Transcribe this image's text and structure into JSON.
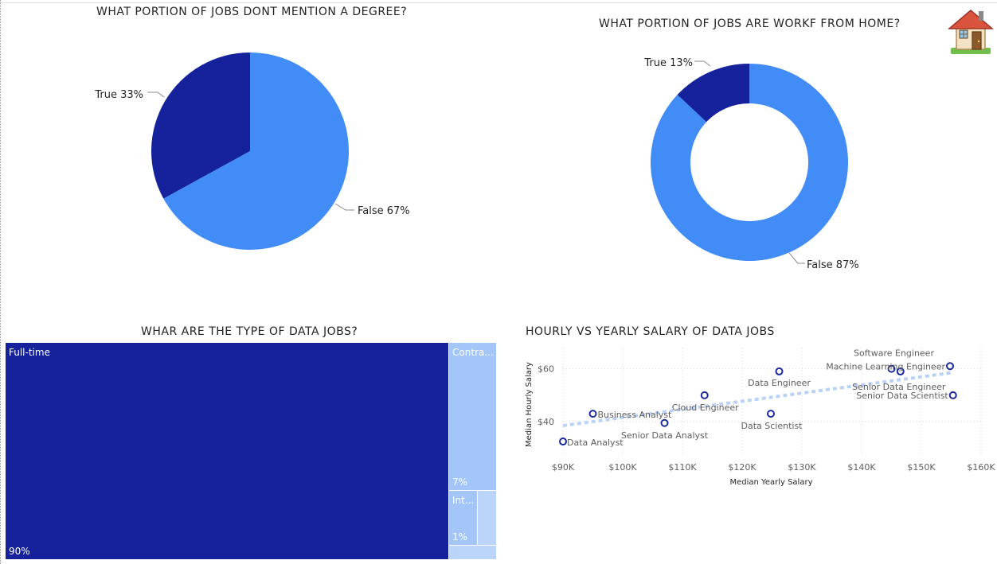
{
  "icons": {
    "house": "house-icon"
  },
  "colors": {
    "dark": "#16229b",
    "light": "#418cf6",
    "tm_light": "#a3c5f7",
    "tm_lighter": "#bbd4fa",
    "scatter": "#1b2a9e",
    "trend": "#b8d3f6"
  },
  "chart_data": [
    {
      "id": "degree",
      "type": "pie",
      "title": "WHAT PORTION OF JOBS DONT MENTION A DEGREE?",
      "slices": [
        {
          "label": "True",
          "value": 33,
          "text": "True 33%"
        },
        {
          "label": "False",
          "value": 67,
          "text": "False 67%"
        }
      ]
    },
    {
      "id": "wfh",
      "type": "pie",
      "donut": true,
      "title": "WHAT PORTION OF JOBS ARE WORKF FROM HOME?",
      "slices": [
        {
          "label": "True",
          "value": 13,
          "text": "True 13%"
        },
        {
          "label": "False",
          "value": 87,
          "text": "False 87%"
        }
      ]
    },
    {
      "id": "types",
      "type": "treemap",
      "title": "WHAR ARE THE TYPE OF DATA JOBS?",
      "items": [
        {
          "label": "Full-time",
          "value": 90,
          "value_text": "90%"
        },
        {
          "label": "Contra...",
          "value": 7,
          "value_text": "7%"
        },
        {
          "label": "Int...",
          "value": 1,
          "value_text": "1%"
        }
      ]
    },
    {
      "id": "salary",
      "type": "scatter",
      "title": "HOURLY VS YEARLY SALARY OF DATA JOBS",
      "xlabel": "Median Yearly Salary",
      "ylabel": "Median Hourly Salary",
      "xlim": [
        90000,
        160000
      ],
      "ylim": [
        28,
        68
      ],
      "xticks": [
        {
          "v": 90000,
          "t": "$90K"
        },
        {
          "v": 100000,
          "t": "$100K"
        },
        {
          "v": 110000,
          "t": "$110K"
        },
        {
          "v": 120000,
          "t": "$120K"
        },
        {
          "v": 130000,
          "t": "$130K"
        },
        {
          "v": 140000,
          "t": "$140K"
        },
        {
          "v": 150000,
          "t": "$150K"
        },
        {
          "v": 160000,
          "t": "$160K"
        }
      ],
      "yticks": [
        {
          "v": 40,
          "t": "$40"
        },
        {
          "v": 60,
          "t": "$60"
        }
      ],
      "points": [
        {
          "label": "Data Analyst",
          "x": 90000,
          "y": 32.5
        },
        {
          "label": "Business Analyst",
          "x": 95000,
          "y": 43
        },
        {
          "label": "Senior Data Analyst",
          "x": 107000,
          "y": 39.5
        },
        {
          "label": "Cloud Engineer",
          "x": 113700,
          "y": 50
        },
        {
          "label": "Data Scientist",
          "x": 124800,
          "y": 43
        },
        {
          "label": "Data Engineer",
          "x": 126200,
          "y": 59
        },
        {
          "label": "Software Engineer",
          "x": 145000,
          "y": 60
        },
        {
          "label": "Senior Data Engineer",
          "x": 146500,
          "y": 59
        },
        {
          "label": "Machine Learning Engineer",
          "x": 154800,
          "y": 61
        },
        {
          "label": "Senior Data Scientist",
          "x": 155300,
          "y": 50
        }
      ],
      "trend": {
        "x1": 90000,
        "y1": 38.5,
        "x2": 155000,
        "y2": 58.5
      }
    }
  ]
}
